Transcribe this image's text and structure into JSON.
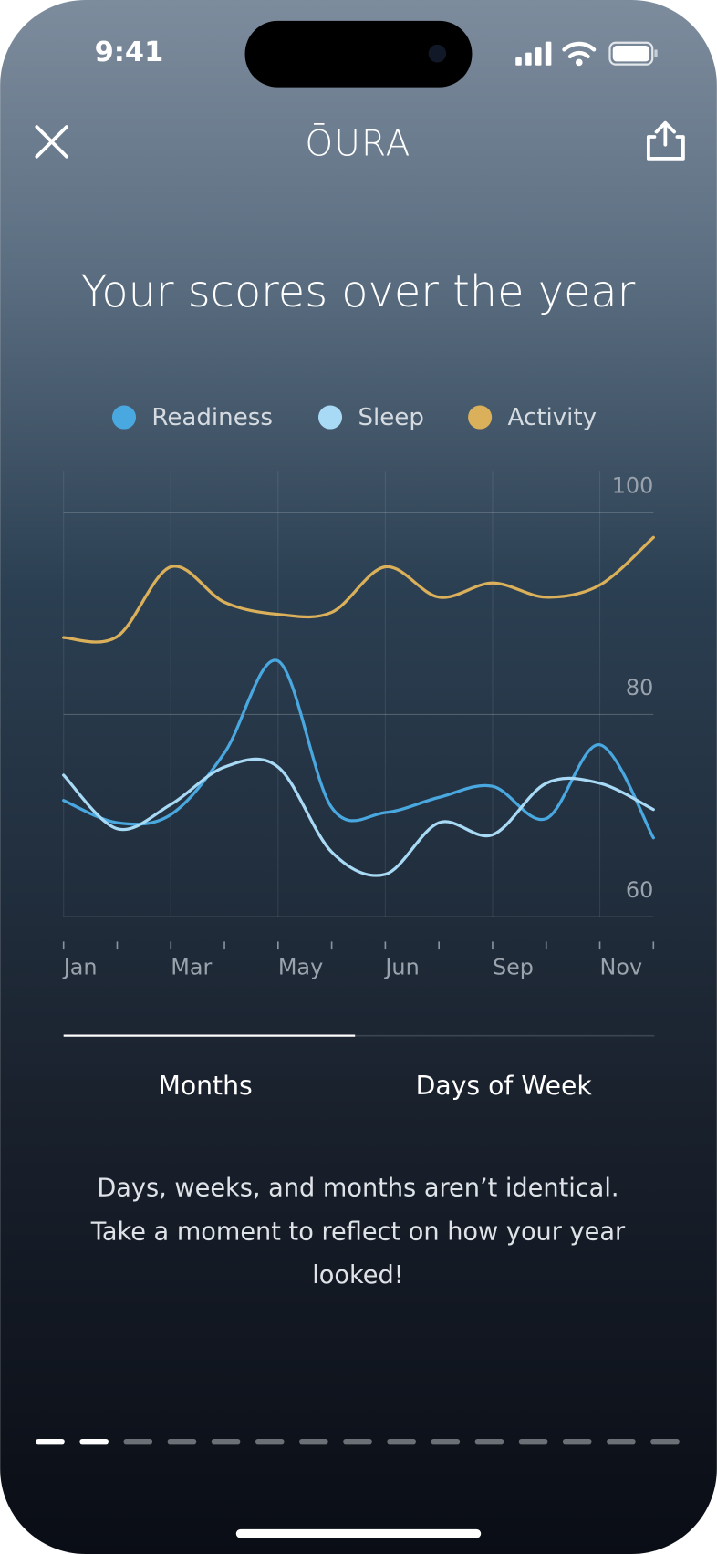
{
  "status": {
    "time": "9:41"
  },
  "header": {
    "logo": "ŌURA"
  },
  "chart_data": {
    "type": "line",
    "title": "Your scores over the year",
    "categories": [
      "Jan",
      null,
      "Mar",
      null,
      "May",
      null,
      "Jun",
      null,
      "Sep",
      null,
      "Nov",
      null
    ],
    "series": [
      {
        "name": "Readiness",
        "color": "#4aa8e0",
        "values": [
          71.5,
          69.3,
          70.1,
          76.2,
          85.3,
          70.8,
          70.3,
          71.8,
          72.9,
          69.7,
          77.0,
          67.8
        ]
      },
      {
        "name": "Sleep",
        "color": "#a8daf5",
        "values": [
          74.0,
          68.7,
          71.1,
          74.8,
          74.8,
          66.4,
          64.2,
          69.3,
          68.1,
          73.2,
          73.2,
          70.6
        ]
      },
      {
        "name": "Activity",
        "color": "#dbb05a",
        "values": [
          87.6,
          87.7,
          94.6,
          91.1,
          89.9,
          90.1,
          94.6,
          91.6,
          93.0,
          91.6,
          92.8,
          97.5
        ]
      }
    ],
    "ylim": [
      60,
      104
    ],
    "yticks": [
      60,
      80,
      100
    ],
    "grid": true,
    "legend": "top"
  },
  "tabs": [
    "Months",
    "Days of Week"
  ],
  "description": [
    "Days, weeks, and months aren’t identical.",
    "Take a moment to reflect on how your year",
    "looked!"
  ]
}
